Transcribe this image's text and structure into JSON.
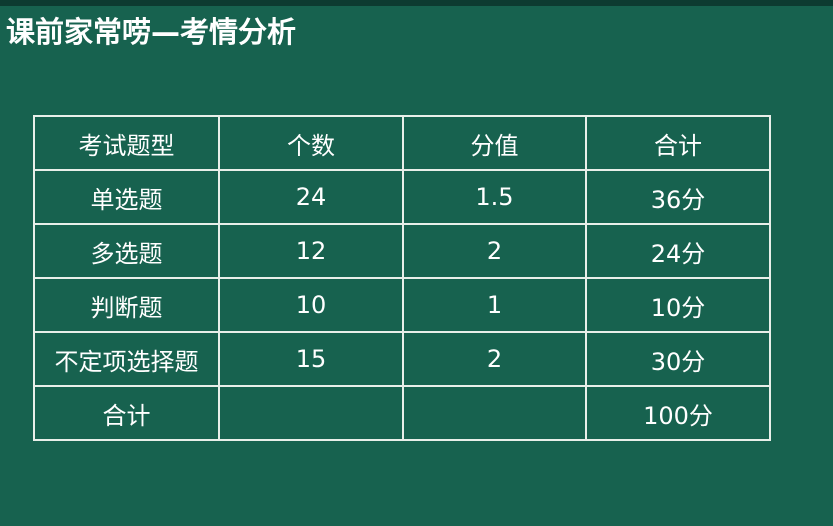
{
  "title": "课前家常唠—考情分析",
  "table": {
    "headers": [
      "考试题型",
      "个数",
      "分值",
      "合计"
    ],
    "rows": [
      [
        "单选题",
        "24",
        "1.5",
        "36分"
      ],
      [
        "多选题",
        "12",
        "2",
        "24分"
      ],
      [
        "判断题",
        "10",
        "1",
        "10分"
      ],
      [
        "不定项选择题",
        "15",
        "2",
        "30分"
      ],
      [
        "合计",
        "",
        "",
        "100分"
      ]
    ]
  },
  "colors": {
    "background": "#17624f",
    "text": "#ffffff",
    "border": "#e8efe9"
  }
}
